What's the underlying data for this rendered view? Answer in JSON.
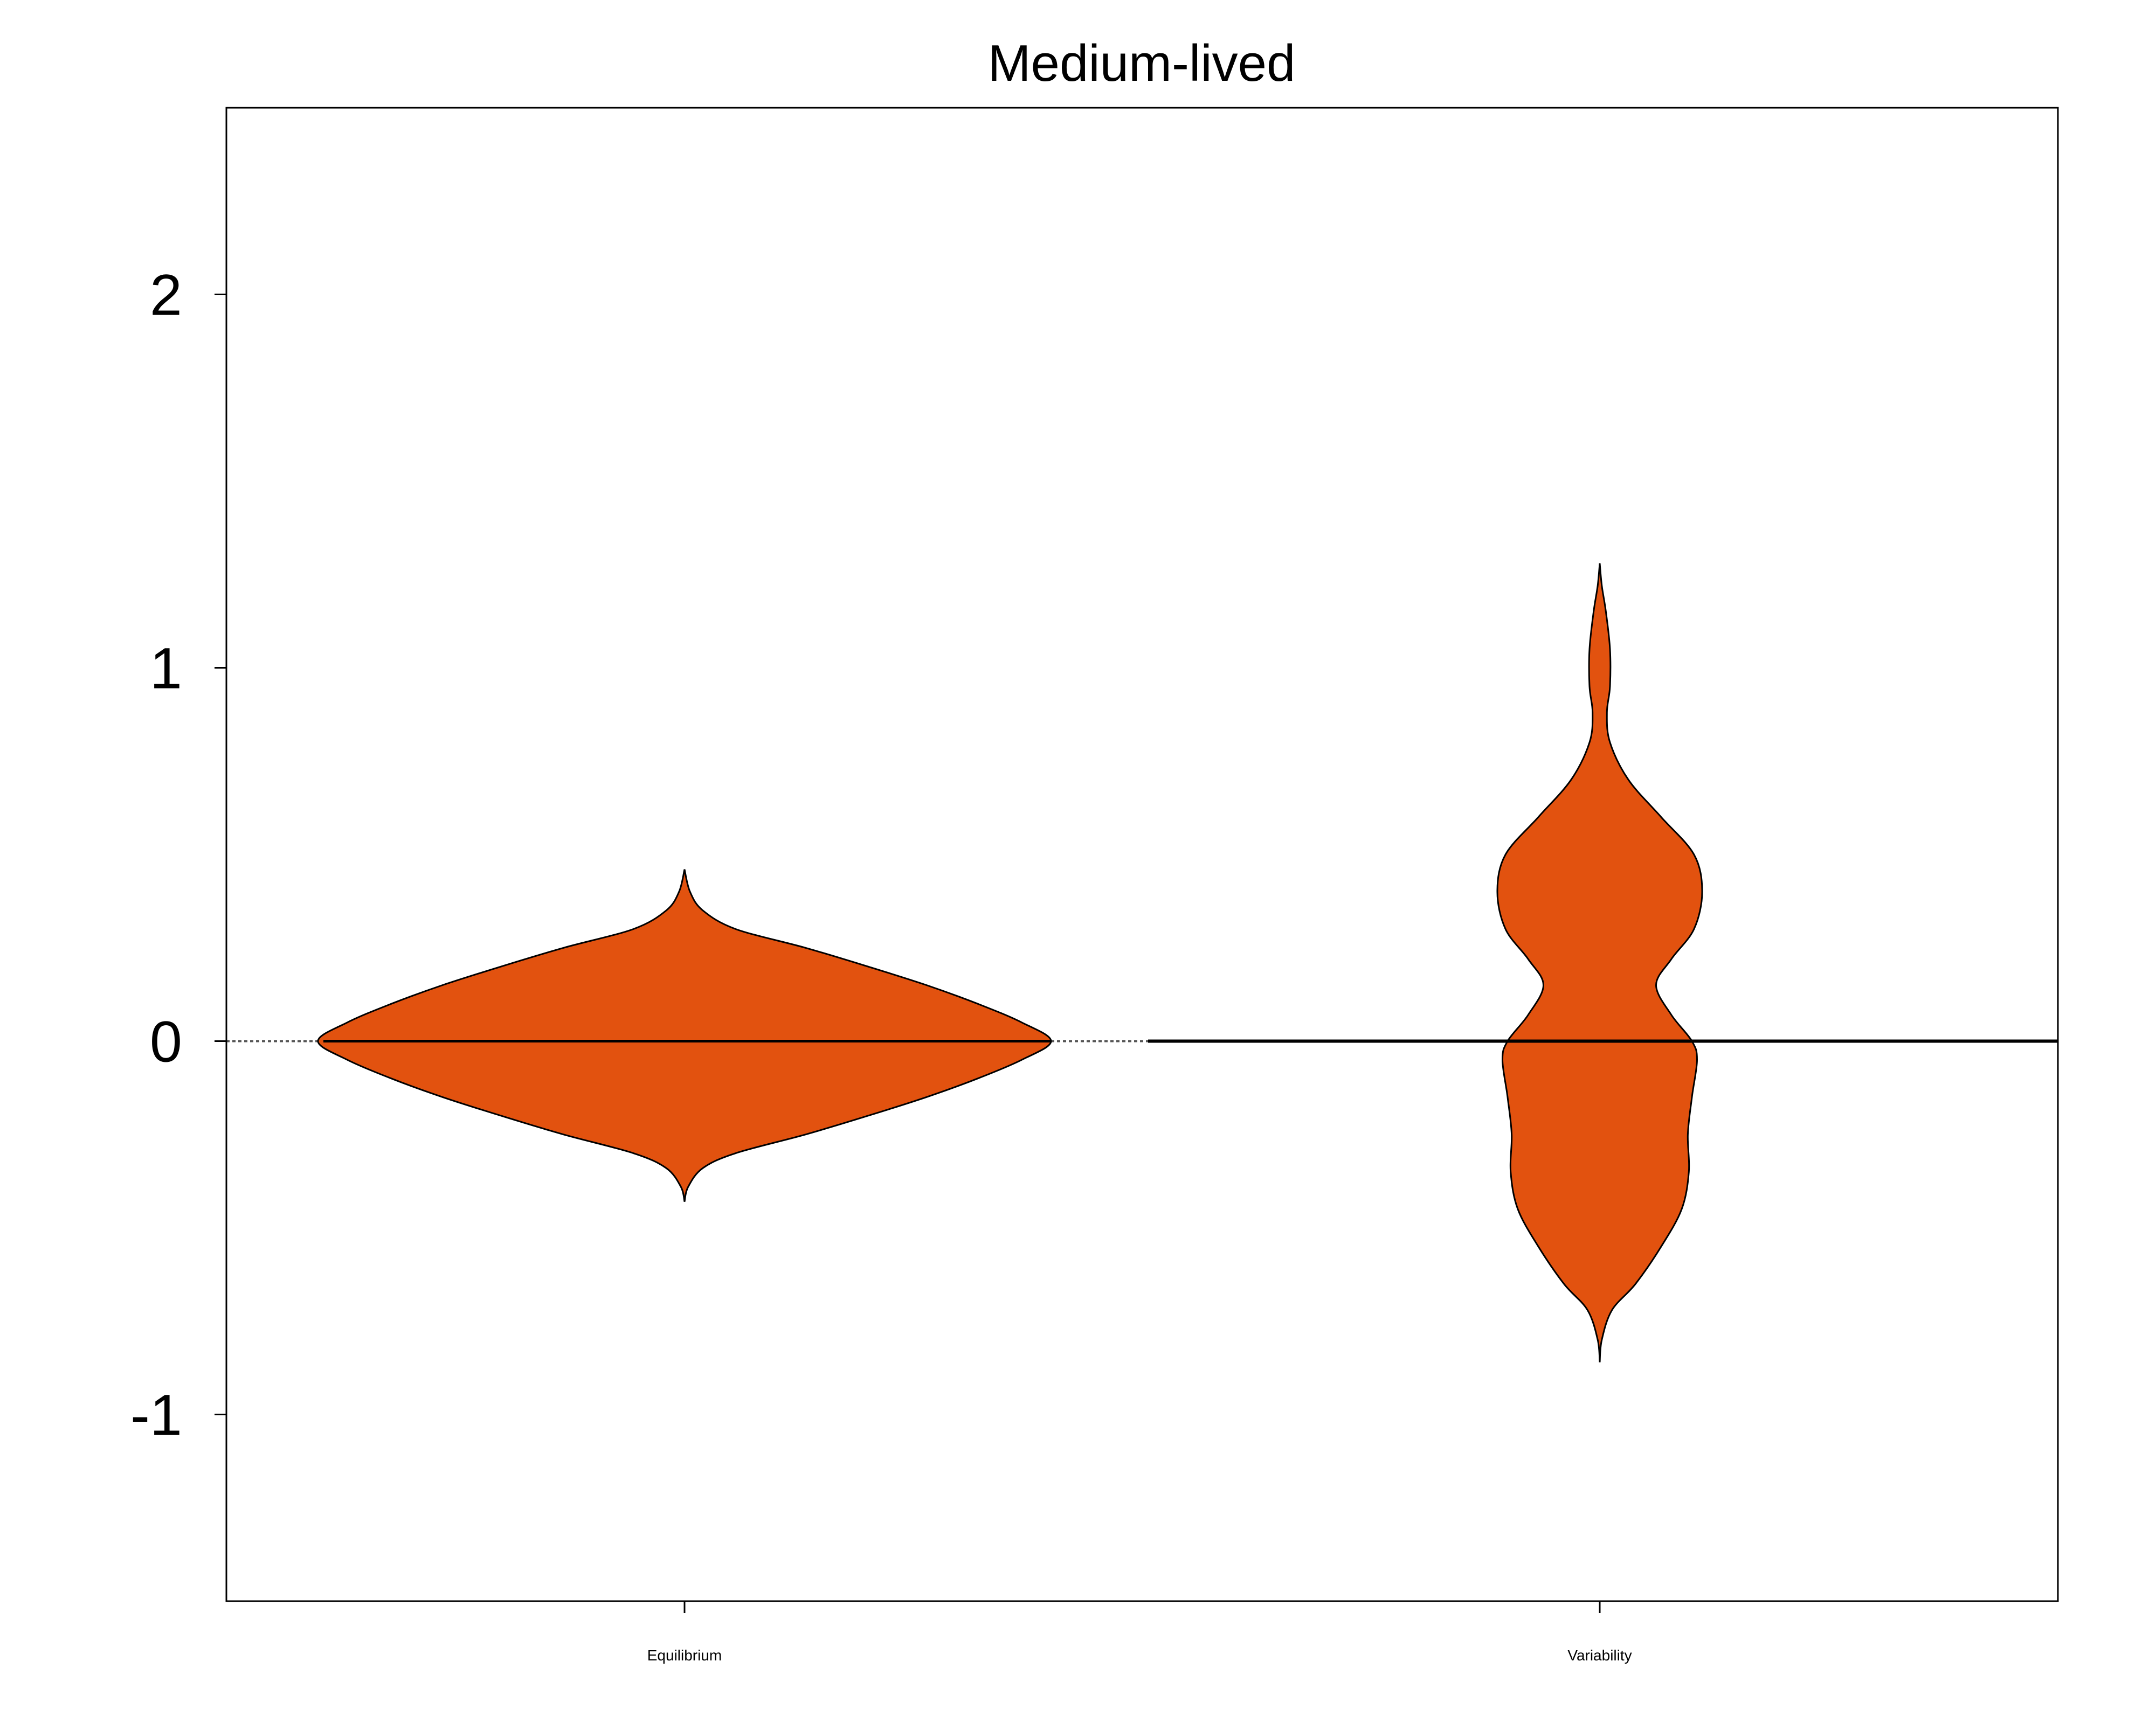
{
  "chart_data": {
    "type": "violin",
    "title": "Medium-lived",
    "xlabel": "",
    "ylabel": "",
    "categories": [
      "Equilibrium",
      "Variability"
    ],
    "ylim": [
      -1.5,
      2.5
    ],
    "yticks": [
      -1,
      0,
      1,
      2
    ],
    "ytick_labels": [
      "-1",
      "0",
      "1",
      "2"
    ],
    "reference_line_y": 0,
    "fill_color": "#E2520F",
    "outline_color": "#000000",
    "violins": [
      {
        "category": "Equilibrium",
        "y_min": -0.43,
        "y_max": 0.46,
        "median": 0.0,
        "density_profile": [
          [
            -0.43,
            0.0
          ],
          [
            -0.39,
            0.01
          ],
          [
            -0.34,
            0.05
          ],
          [
            -0.3,
            0.14
          ],
          [
            -0.25,
            0.33
          ],
          [
            -0.2,
            0.5
          ],
          [
            -0.15,
            0.66
          ],
          [
            -0.1,
            0.8
          ],
          [
            -0.05,
            0.92
          ],
          [
            0.0,
            1.0
          ],
          [
            0.05,
            0.92
          ],
          [
            0.1,
            0.8
          ],
          [
            0.15,
            0.66
          ],
          [
            0.2,
            0.5
          ],
          [
            0.25,
            0.33
          ],
          [
            0.3,
            0.14
          ],
          [
            0.35,
            0.05
          ],
          [
            0.4,
            0.015
          ],
          [
            0.46,
            0.0
          ]
        ]
      },
      {
        "category": "Variability",
        "y_min": -0.86,
        "y_max": 1.28,
        "median": 0.0,
        "density_profile": [
          [
            -0.86,
            0.0
          ],
          [
            -0.8,
            0.02
          ],
          [
            -0.72,
            0.12
          ],
          [
            -0.65,
            0.35
          ],
          [
            -0.55,
            0.6
          ],
          [
            -0.45,
            0.8
          ],
          [
            -0.35,
            0.87
          ],
          [
            -0.25,
            0.86
          ],
          [
            -0.15,
            0.9
          ],
          [
            -0.05,
            0.95
          ],
          [
            0.0,
            0.9
          ],
          [
            0.07,
            0.7
          ],
          [
            0.15,
            0.55
          ],
          [
            0.22,
            0.7
          ],
          [
            0.3,
            0.92
          ],
          [
            0.4,
            1.0
          ],
          [
            0.5,
            0.92
          ],
          [
            0.6,
            0.6
          ],
          [
            0.7,
            0.28
          ],
          [
            0.8,
            0.1
          ],
          [
            0.88,
            0.07
          ],
          [
            0.95,
            0.1
          ],
          [
            1.05,
            0.1
          ],
          [
            1.15,
            0.06
          ],
          [
            1.22,
            0.02
          ],
          [
            1.28,
            0.0
          ]
        ]
      }
    ]
  }
}
